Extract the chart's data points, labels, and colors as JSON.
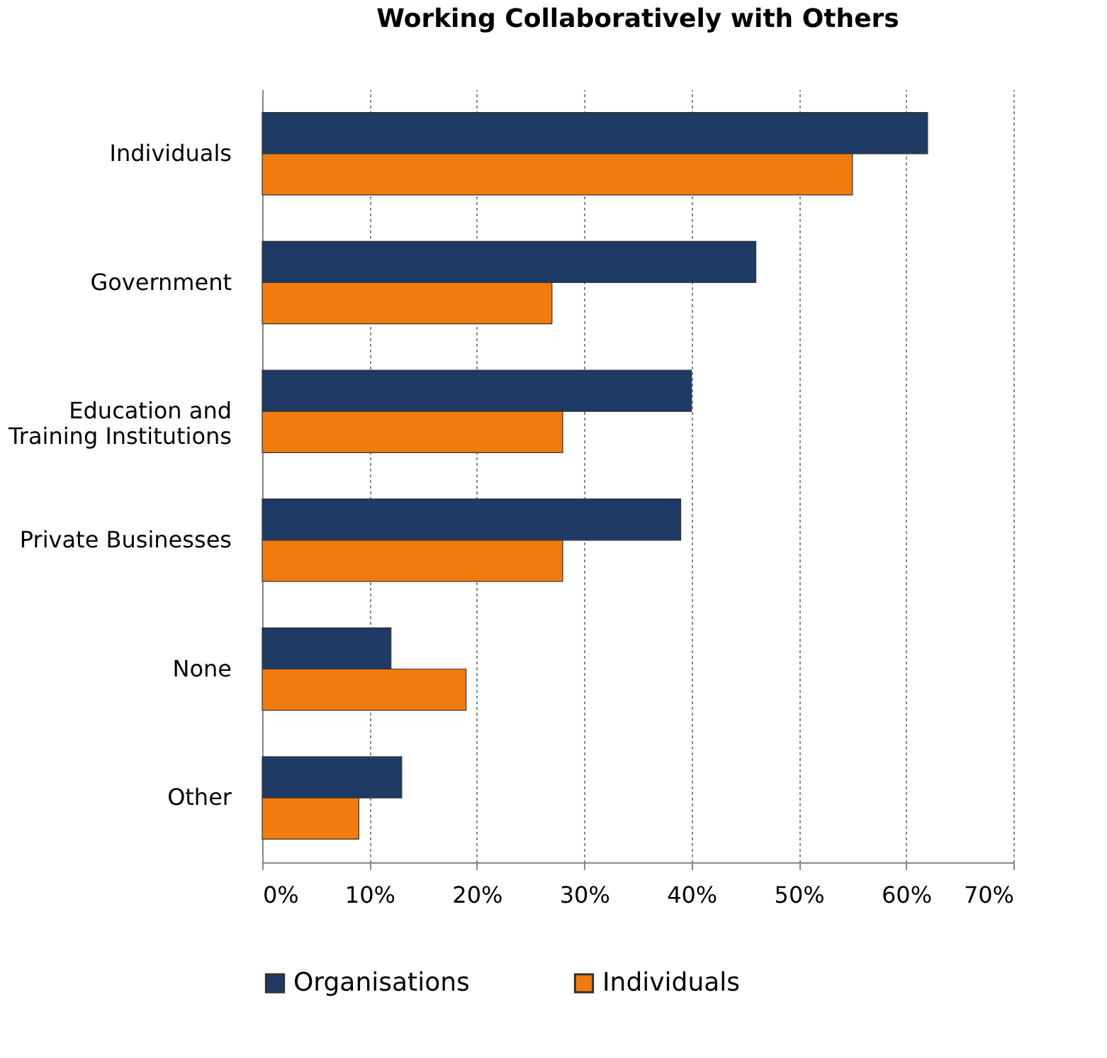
{
  "chart_data": {
    "type": "bar",
    "orientation": "horizontal",
    "title": "Working Collaboratively with Others",
    "categories": [
      "Individuals",
      "Government",
      "Education and\nTraining Institutions",
      "Private Businesses",
      "None",
      "Other"
    ],
    "series": [
      {
        "name": "Organisations",
        "color": "#1f3a64",
        "values": [
          62,
          46,
          40,
          39,
          12,
          13
        ]
      },
      {
        "name": "Individuals",
        "color": "#f07c10",
        "values": [
          55,
          27,
          28,
          28,
          19,
          9
        ]
      }
    ],
    "xlim": [
      0,
      70
    ],
    "xticks": [
      {
        "value": 0,
        "label": "0%"
      },
      {
        "value": 10,
        "label": "10%"
      },
      {
        "value": 20,
        "label": "20%"
      },
      {
        "value": 30,
        "label": "30%"
      },
      {
        "value": 40,
        "label": "40%"
      },
      {
        "value": 50,
        "label": "50%"
      },
      {
        "value": 60,
        "label": "60%"
      },
      {
        "value": 70,
        "label": "70%"
      }
    ],
    "grid": "x",
    "legend": "bottom"
  }
}
